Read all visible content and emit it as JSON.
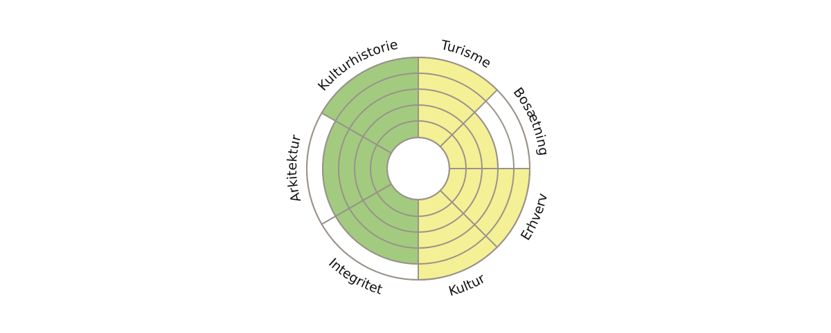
{
  "chart_data": {
    "type": "polar-area",
    "levels": 5,
    "categories": [
      {
        "label": "Turisme",
        "value": 5,
        "color": "#f4f095"
      },
      {
        "label": "Bosætning",
        "value": 3,
        "color": "#f4f095"
      },
      {
        "label": "Erhverv",
        "value": 5,
        "color": "#f4f095"
      },
      {
        "label": "Kultur",
        "value": 5,
        "color": "#f4f095"
      },
      {
        "label": "Integritet",
        "value": 4,
        "color": "#a2cb7f"
      },
      {
        "label": "Arkitektur",
        "value": 4,
        "color": "#a2cb7f"
      },
      {
        "label": "Kulturhistorie",
        "value": 5,
        "color": "#a2cb7f"
      }
    ],
    "sectors_deg": [
      [
        0,
        45
      ],
      [
        45,
        90
      ],
      [
        90,
        135
      ],
      [
        135,
        180
      ],
      [
        180,
        240
      ],
      [
        240,
        300
      ],
      [
        300,
        360
      ]
    ],
    "grid_color": "#9a928a",
    "empty_color": "#ffffff"
  }
}
